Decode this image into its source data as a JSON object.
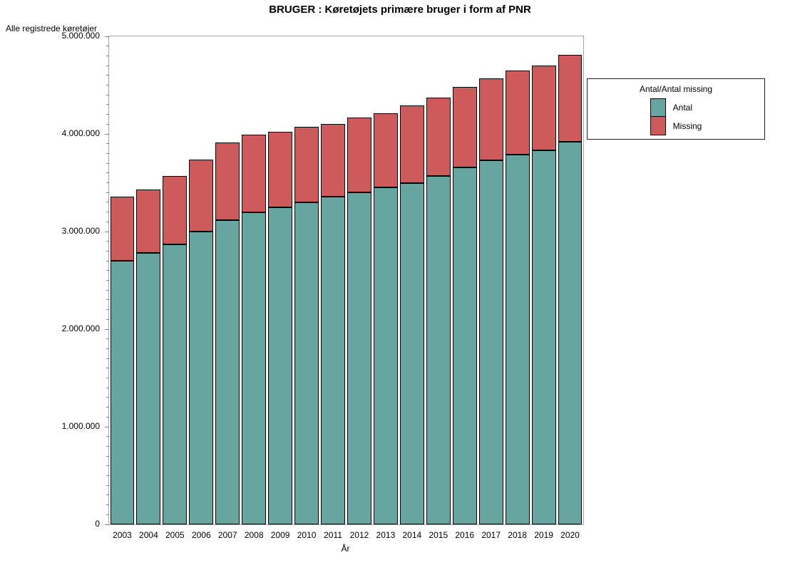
{
  "chart_data": {
    "type": "bar",
    "stacked": true,
    "title": "BRUGER : Køretøjets primære bruger i form af PNR",
    "xlabel": "År",
    "ylabel": "Alle registrede køretøjer",
    "ylim": [
      0,
      5000000
    ],
    "grid": false,
    "y_major_ticks": [
      {
        "value": 0,
        "label": "0"
      },
      {
        "value": 1000000,
        "label": "1.000.000"
      },
      {
        "value": 2000000,
        "label": "2.000.000"
      },
      {
        "value": 3000000,
        "label": "3.000.000"
      },
      {
        "value": 4000000,
        "label": "4.000.000"
      },
      {
        "value": 5000000,
        "label": "5.000.000"
      }
    ],
    "y_minor_tick_interval": 100000,
    "categories": [
      "2003",
      "2004",
      "2005",
      "2006",
      "2007",
      "2008",
      "2009",
      "2010",
      "2011",
      "2012",
      "2013",
      "2014",
      "2015",
      "2016",
      "2017",
      "2018",
      "2019",
      "2020"
    ],
    "series": [
      {
        "name": "Antal",
        "color": "#66a5a0",
        "values": [
          2700000,
          2780000,
          2870000,
          3000000,
          3120000,
          3200000,
          3250000,
          3300000,
          3360000,
          3400000,
          3450000,
          3500000,
          3570000,
          3660000,
          3730000,
          3790000,
          3830000,
          3920000
        ]
      },
      {
        "name": "Missing",
        "color": "#cd5b5b",
        "values": [
          660000,
          650000,
          700000,
          740000,
          790000,
          790000,
          770000,
          770000,
          740000,
          770000,
          760000,
          790000,
          800000,
          820000,
          840000,
          860000,
          870000,
          890000
        ]
      }
    ],
    "totals": [
      3360000,
      3430000,
      3570000,
      3740000,
      3910000,
      3990000,
      4020000,
      4070000,
      4100000,
      4170000,
      4210000,
      4290000,
      4370000,
      4480000,
      4570000,
      4650000,
      4700000,
      4810000
    ],
    "legend": {
      "title": "Antal/Antal missing",
      "position": "right",
      "entries": [
        {
          "label": "Antal",
          "color": "#66a5a0"
        },
        {
          "label": "Missing",
          "color": "#cd5b5b"
        }
      ]
    }
  }
}
